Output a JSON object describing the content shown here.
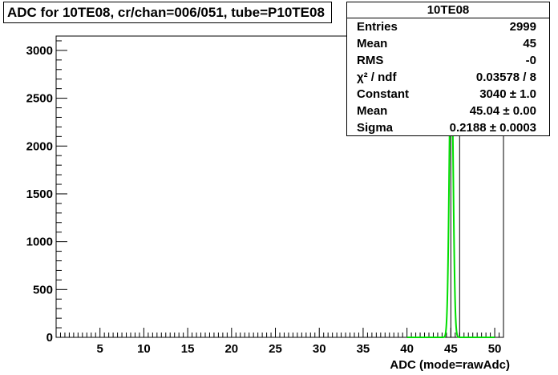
{
  "chart_data": {
    "type": "histogram",
    "title": "ADC for 10TE08,  cr/chan=006/051,  tube=P10TE08",
    "xlabel": "ADC (mode=rawAdc)",
    "ylabel": "",
    "xlim": [
      0,
      51
    ],
    "ylim": [
      0,
      3150
    ],
    "x_ticks": [
      5,
      10,
      15,
      20,
      25,
      30,
      35,
      40,
      45,
      50
    ],
    "x_tick_labels": [
      "5",
      "10",
      "15",
      "20",
      "25",
      "30",
      "35",
      "40",
      "45",
      "50"
    ],
    "y_ticks": [
      0,
      500,
      1000,
      1500,
      2000,
      2500,
      3000
    ],
    "y_tick_labels": [
      "0",
      "500",
      "1000",
      "1500",
      "2000",
      "2500",
      "3000"
    ],
    "histogram": {
      "name": "10TE08",
      "bins": [
        {
          "low": 44,
          "high": 45,
          "count": 0
        },
        {
          "low": 45,
          "high": 46,
          "count": 2999
        }
      ]
    },
    "fit": {
      "function": "gaus",
      "constant": 3040,
      "mean": 45.04,
      "sigma": 0.2188,
      "x_range": [
        40,
        50
      ],
      "color": "#00dd00"
    },
    "colors": {
      "histogram": "#000000",
      "fit": "#00dd00"
    }
  },
  "stats": {
    "title": "10TE08",
    "rows": [
      {
        "label": "Entries",
        "value": "2999"
      },
      {
        "label": "Mean",
        "value": "45"
      },
      {
        "label": "RMS",
        "value": "-0"
      },
      {
        "label": "χ² / ndf",
        "value": "0.03578 / 8"
      },
      {
        "label": "Constant",
        "value": "3040 ± 1.0"
      },
      {
        "label": "Mean",
        "value": "45.04 ± 0.00"
      },
      {
        "label": "Sigma",
        "value": "0.2188 ± 0.0003"
      }
    ]
  }
}
